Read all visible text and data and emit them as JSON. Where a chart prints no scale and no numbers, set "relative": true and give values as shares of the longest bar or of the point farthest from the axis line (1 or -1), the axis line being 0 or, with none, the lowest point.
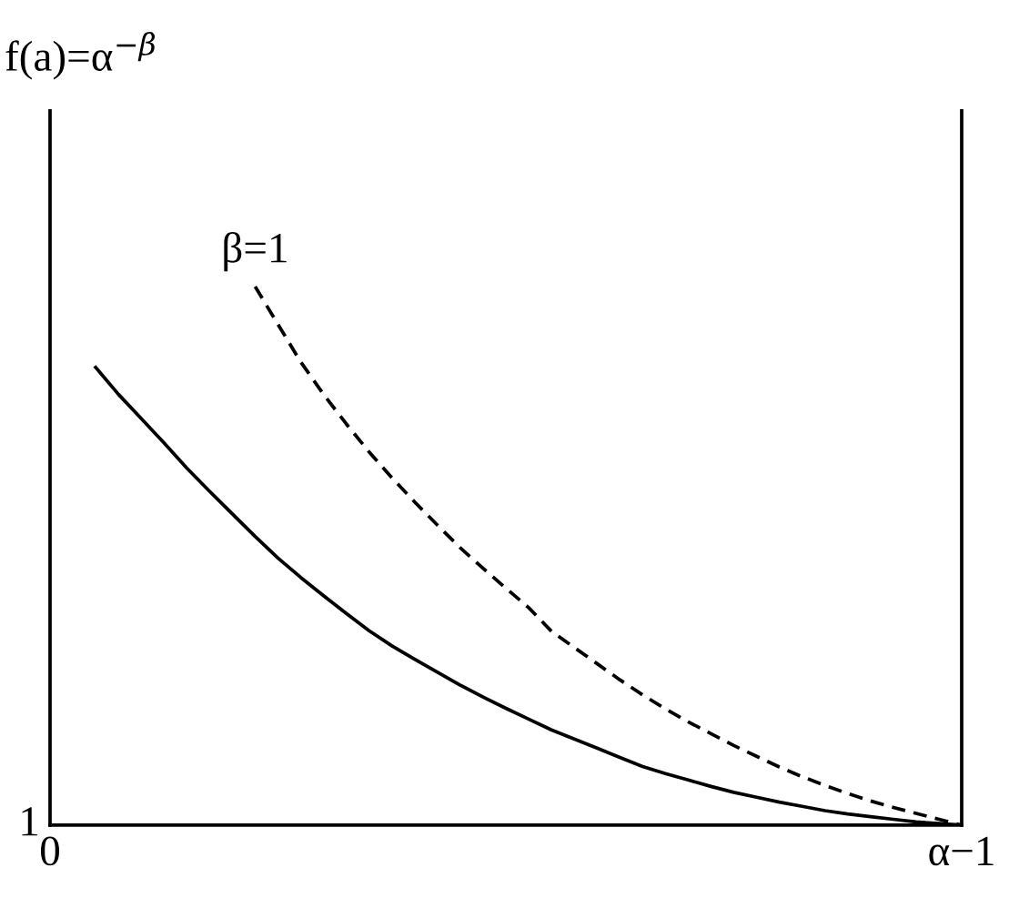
{
  "chart_data": {
    "type": "line",
    "relative": true,
    "ylabel": "f(a)=α$^{−β}$",
    "categories": [
      "0",
      null,
      null,
      null,
      null,
      null,
      null,
      null,
      null,
      null,
      null,
      null,
      null,
      null,
      null,
      null,
      null,
      null,
      null,
      null,
      null,
      null,
      null,
      null,
      null,
      null,
      null,
      null,
      null,
      null,
      null,
      null,
      null,
      null,
      null,
      null,
      null,
      null,
      null,
      null,
      "α−1"
    ],
    "series": [
      {
        "color": "#000000",
        "line_style": "solid",
        "values": [
          null,
          null,
          0.85,
          0.8,
          0.755,
          0.71,
          0.663,
          0.62,
          0.578,
          0.536,
          0.496,
          0.46,
          0.426,
          0.393,
          0.361,
          0.333,
          0.308,
          0.284,
          0.26,
          0.238,
          0.217,
          0.197,
          0.177,
          0.16,
          0.143,
          0.126,
          0.109,
          0.096,
          0.084,
          0.072,
          0.061,
          0.052,
          0.043,
          0.035,
          0.027,
          0.021,
          0.016,
          0.011,
          0.006,
          0.003,
          0.0
        ]
      },
      {
        "name": "β=1",
        "color": "#000000",
        "line_style": "dashed",
        "values": [
          null,
          null,
          null,
          null,
          null,
          null,
          null,
          null,
          null,
          1.0,
          0.93,
          0.86,
          0.8,
          0.745,
          0.693,
          0.645,
          0.6,
          0.557,
          0.515,
          0.477,
          0.44,
          0.404,
          0.36,
          0.33,
          0.3,
          0.27,
          0.242,
          0.216,
          0.192,
          0.17,
          0.148,
          0.128,
          0.108,
          0.09,
          0.074,
          0.059,
          0.045,
          0.033,
          0.022,
          0.011,
          0.0
        ]
      }
    ],
    "annotations": [
      "1"
    ]
  }
}
